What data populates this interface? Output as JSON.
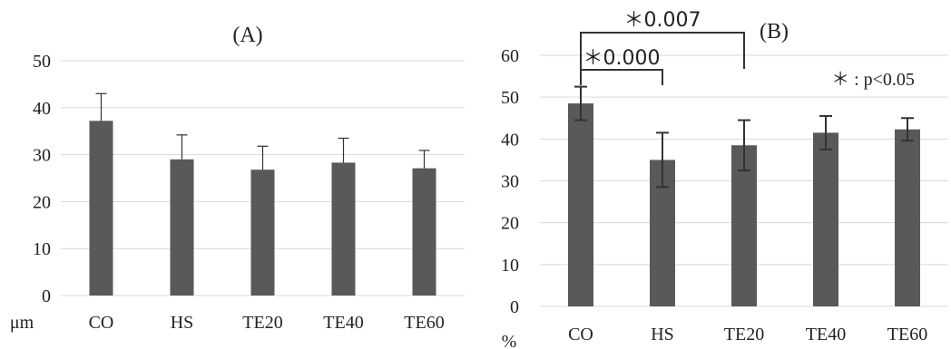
{
  "chart_data": [
    {
      "type": "bar",
      "title": "(A)",
      "ylabel": "μm",
      "categories": [
        "CO",
        "HS",
        "TE20",
        "TE40",
        "TE60"
      ],
      "values": [
        37.2,
        29.0,
        26.8,
        28.3,
        27.1
      ],
      "error": [
        5.8,
        5.2,
        5.0,
        5.2,
        3.8
      ],
      "error_style": "upper",
      "ylim": [
        0,
        50
      ],
      "yticks": [
        0,
        10,
        20,
        30,
        40,
        50
      ],
      "grid": true,
      "bar_color": "#595959"
    },
    {
      "type": "bar",
      "title": "(B)",
      "ylabel": "%",
      "categories": [
        "CO",
        "HS",
        "TE20",
        "TE40",
        "TE60"
      ],
      "values": [
        48.5,
        35.0,
        38.5,
        41.5,
        42.3
      ],
      "error": [
        4.0,
        6.5,
        6.0,
        4.0,
        2.7
      ],
      "error_style": "both",
      "ylim": [
        0,
        60
      ],
      "yticks": [
        0,
        10,
        20,
        30,
        40,
        50,
        60
      ],
      "grid": true,
      "bar_color": "#595959",
      "significance": [
        {
          "from": "CO",
          "to": "HS",
          "label": "＊0.000"
        },
        {
          "from": "CO",
          "to": "TE20",
          "label": "＊0.007"
        }
      ],
      "note": "＊ : p<0.05"
    }
  ]
}
